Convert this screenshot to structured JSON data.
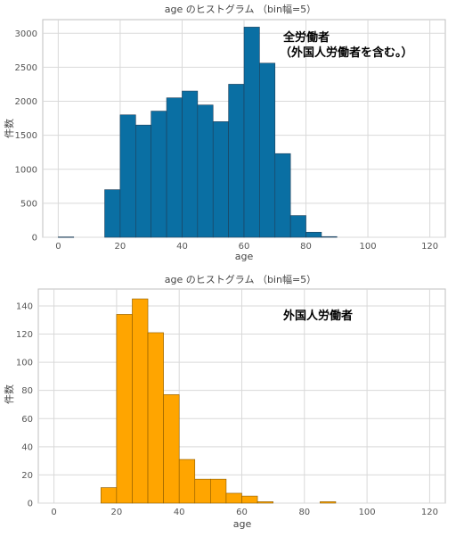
{
  "chart_data": [
    {
      "type": "bar",
      "title": "age のヒストグラム （bin幅=5）",
      "xlabel": "age",
      "ylabel": "件数",
      "annotation": [
        "全労働者",
        "（外国人労働者を含む。）"
      ],
      "color": "#0a6fa3",
      "edge_color": "#1f3f5a",
      "bin_width": 5,
      "xlim": [
        -5,
        125
      ],
      "ylim": [
        0,
        3200
      ],
      "xticks": [
        0,
        20,
        40,
        60,
        80,
        100,
        120
      ],
      "yticks": [
        0,
        500,
        1000,
        1500,
        2000,
        2500,
        3000
      ],
      "grid": true,
      "bins": [
        {
          "start": 0,
          "count": 5
        },
        {
          "start": 15,
          "count": 700
        },
        {
          "start": 20,
          "count": 1800
        },
        {
          "start": 25,
          "count": 1650
        },
        {
          "start": 30,
          "count": 1855
        },
        {
          "start": 35,
          "count": 2050
        },
        {
          "start": 40,
          "count": 2150
        },
        {
          "start": 45,
          "count": 1945
        },
        {
          "start": 50,
          "count": 1700
        },
        {
          "start": 55,
          "count": 2250
        },
        {
          "start": 60,
          "count": 3090
        },
        {
          "start": 65,
          "count": 2560
        },
        {
          "start": 70,
          "count": 1230
        },
        {
          "start": 75,
          "count": 320
        },
        {
          "start": 80,
          "count": 75
        },
        {
          "start": 85,
          "count": 10
        }
      ]
    },
    {
      "type": "bar",
      "title": "age のヒストグラム （bin幅=5）",
      "xlabel": "age",
      "ylabel": "件数",
      "annotation": [
        "外国人労働者"
      ],
      "color": "#ffa500",
      "edge_color": "#8a5a00",
      "bin_width": 5,
      "xlim": [
        -5,
        125
      ],
      "ylim": [
        0,
        152
      ],
      "xticks": [
        0,
        20,
        40,
        60,
        80,
        100,
        120
      ],
      "yticks": [
        0,
        20,
        40,
        60,
        80,
        100,
        120,
        140
      ],
      "grid": true,
      "bins": [
        {
          "start": 15,
          "count": 11
        },
        {
          "start": 20,
          "count": 134
        },
        {
          "start": 25,
          "count": 145
        },
        {
          "start": 30,
          "count": 121
        },
        {
          "start": 35,
          "count": 77
        },
        {
          "start": 40,
          "count": 31
        },
        {
          "start": 45,
          "count": 17
        },
        {
          "start": 50,
          "count": 17
        },
        {
          "start": 55,
          "count": 7
        },
        {
          "start": 60,
          "count": 5
        },
        {
          "start": 65,
          "count": 1
        },
        {
          "start": 85,
          "count": 1
        }
      ]
    }
  ]
}
